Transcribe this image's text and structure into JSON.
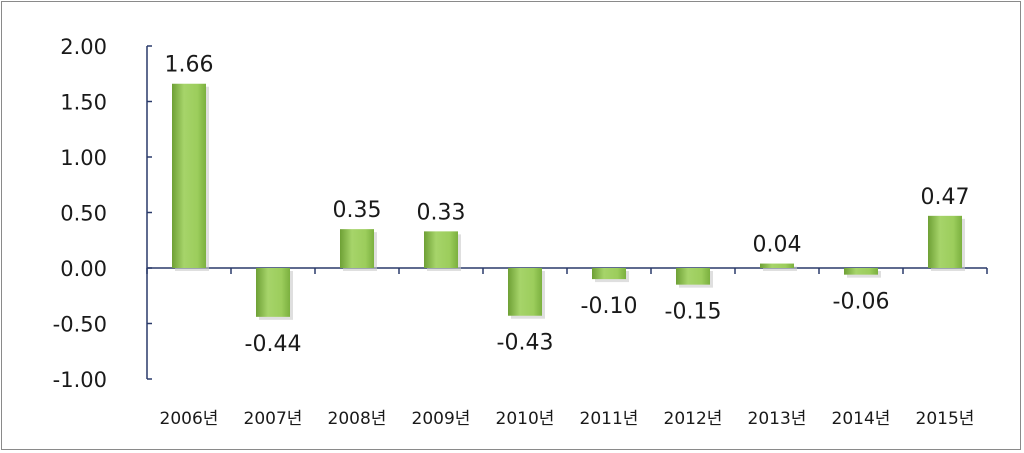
{
  "chart_data": {
    "type": "bar",
    "categories": [
      "2006년",
      "2007년",
      "2008년",
      "2009년",
      "2010년",
      "2011년",
      "2012년",
      "2013년",
      "2014년",
      "2015년"
    ],
    "values": [
      1.66,
      -0.44,
      0.35,
      0.33,
      -0.43,
      -0.1,
      -0.15,
      0.04,
      -0.06,
      0.47
    ],
    "data_labels": [
      "1.66",
      "-0.44",
      "0.35",
      "0.33",
      "-0.43",
      "-0.10",
      "-0.15",
      "0.04",
      "-0.06",
      "0.47"
    ],
    "y_ticks": [
      "2.00",
      "1.50",
      "1.00",
      "0.50",
      "0.00",
      "-0.50",
      "-1.00"
    ],
    "y_tick_values": [
      2.0,
      1.5,
      1.0,
      0.5,
      0.0,
      -0.5,
      -1.0
    ],
    "ylim": [
      -1.0,
      2.0
    ],
    "title": "",
    "xlabel": "",
    "ylabel": "",
    "grid": false,
    "legend": "none",
    "colors": {
      "bar_light": "#b4dc7a",
      "bar_mid": "#94c853",
      "bar_dark": "#6ea035",
      "axis": "#2a3a6a"
    }
  }
}
